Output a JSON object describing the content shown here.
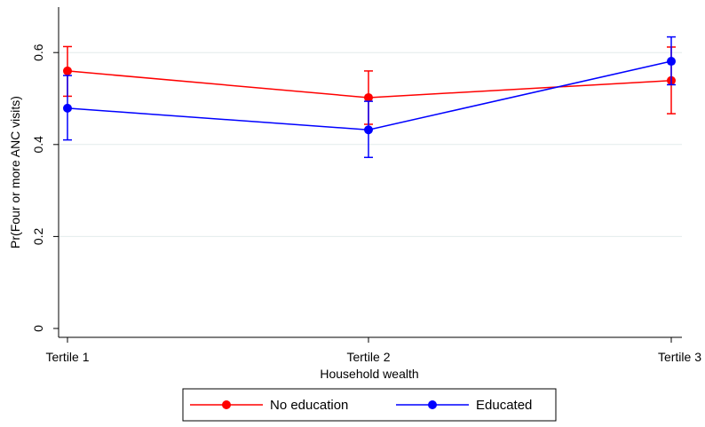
{
  "chart_data": {
    "type": "line",
    "title": "",
    "xlabel": "Household wealth",
    "ylabel": "Pr(Four or more ANC visits)",
    "categories": [
      "Tertile 1",
      "Tertile 2",
      "Tertile 3"
    ],
    "ylim": [
      0,
      0.65
    ],
    "yticks": [
      0,
      0.2,
      0.4,
      0.6
    ],
    "ytick_labels": [
      "0",
      "0.2",
      "0.4",
      "0.6"
    ],
    "grid": true,
    "legend_position": "bottom",
    "series": [
      {
        "name": "No education",
        "color": "#ff0000",
        "values": [
          0.56,
          0.502,
          0.539
        ],
        "ci_low": [
          0.505,
          0.444,
          0.467
        ],
        "ci_high": [
          0.613,
          0.56,
          0.612
        ]
      },
      {
        "name": "Educated",
        "color": "#0000ff",
        "values": [
          0.479,
          0.432,
          0.581
        ],
        "ci_low": [
          0.41,
          0.372,
          0.53
        ],
        "ci_high": [
          0.55,
          0.494,
          0.634
        ]
      }
    ]
  }
}
